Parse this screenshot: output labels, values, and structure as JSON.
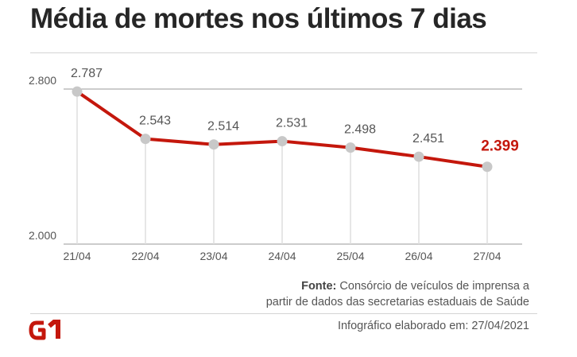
{
  "title": "Média de mortes nos últimos 7 dias",
  "source_label": "Fonte:",
  "source_line1": "Consórcio de veículos de imprensa a",
  "source_line2": "partir de dados das secretarias estaduais de Saúde",
  "credit": "Infográfico elaborado em: 27/04/2021",
  "logo_text": "G1",
  "colors": {
    "line": "#c4170c",
    "marker": "#c8c8c8",
    "highlight_label": "#c4170c",
    "text": "#555555"
  },
  "chart_data": {
    "type": "line",
    "title": "Média de mortes nos últimos 7 dias",
    "categories": [
      "21/04",
      "22/04",
      "23/04",
      "24/04",
      "25/04",
      "26/04",
      "27/04"
    ],
    "values": [
      2787,
      2543,
      2514,
      2531,
      2498,
      2451,
      2399
    ],
    "value_labels": [
      "2.787",
      "2.543",
      "2.514",
      "2.531",
      "2.498",
      "2.451",
      "2.399"
    ],
    "yticks": [
      2000,
      2800
    ],
    "ytick_labels": [
      "2.000",
      "2.800"
    ],
    "ylim": [
      2000,
      2800
    ],
    "grid": true,
    "xlabel": "",
    "ylabel": ""
  }
}
